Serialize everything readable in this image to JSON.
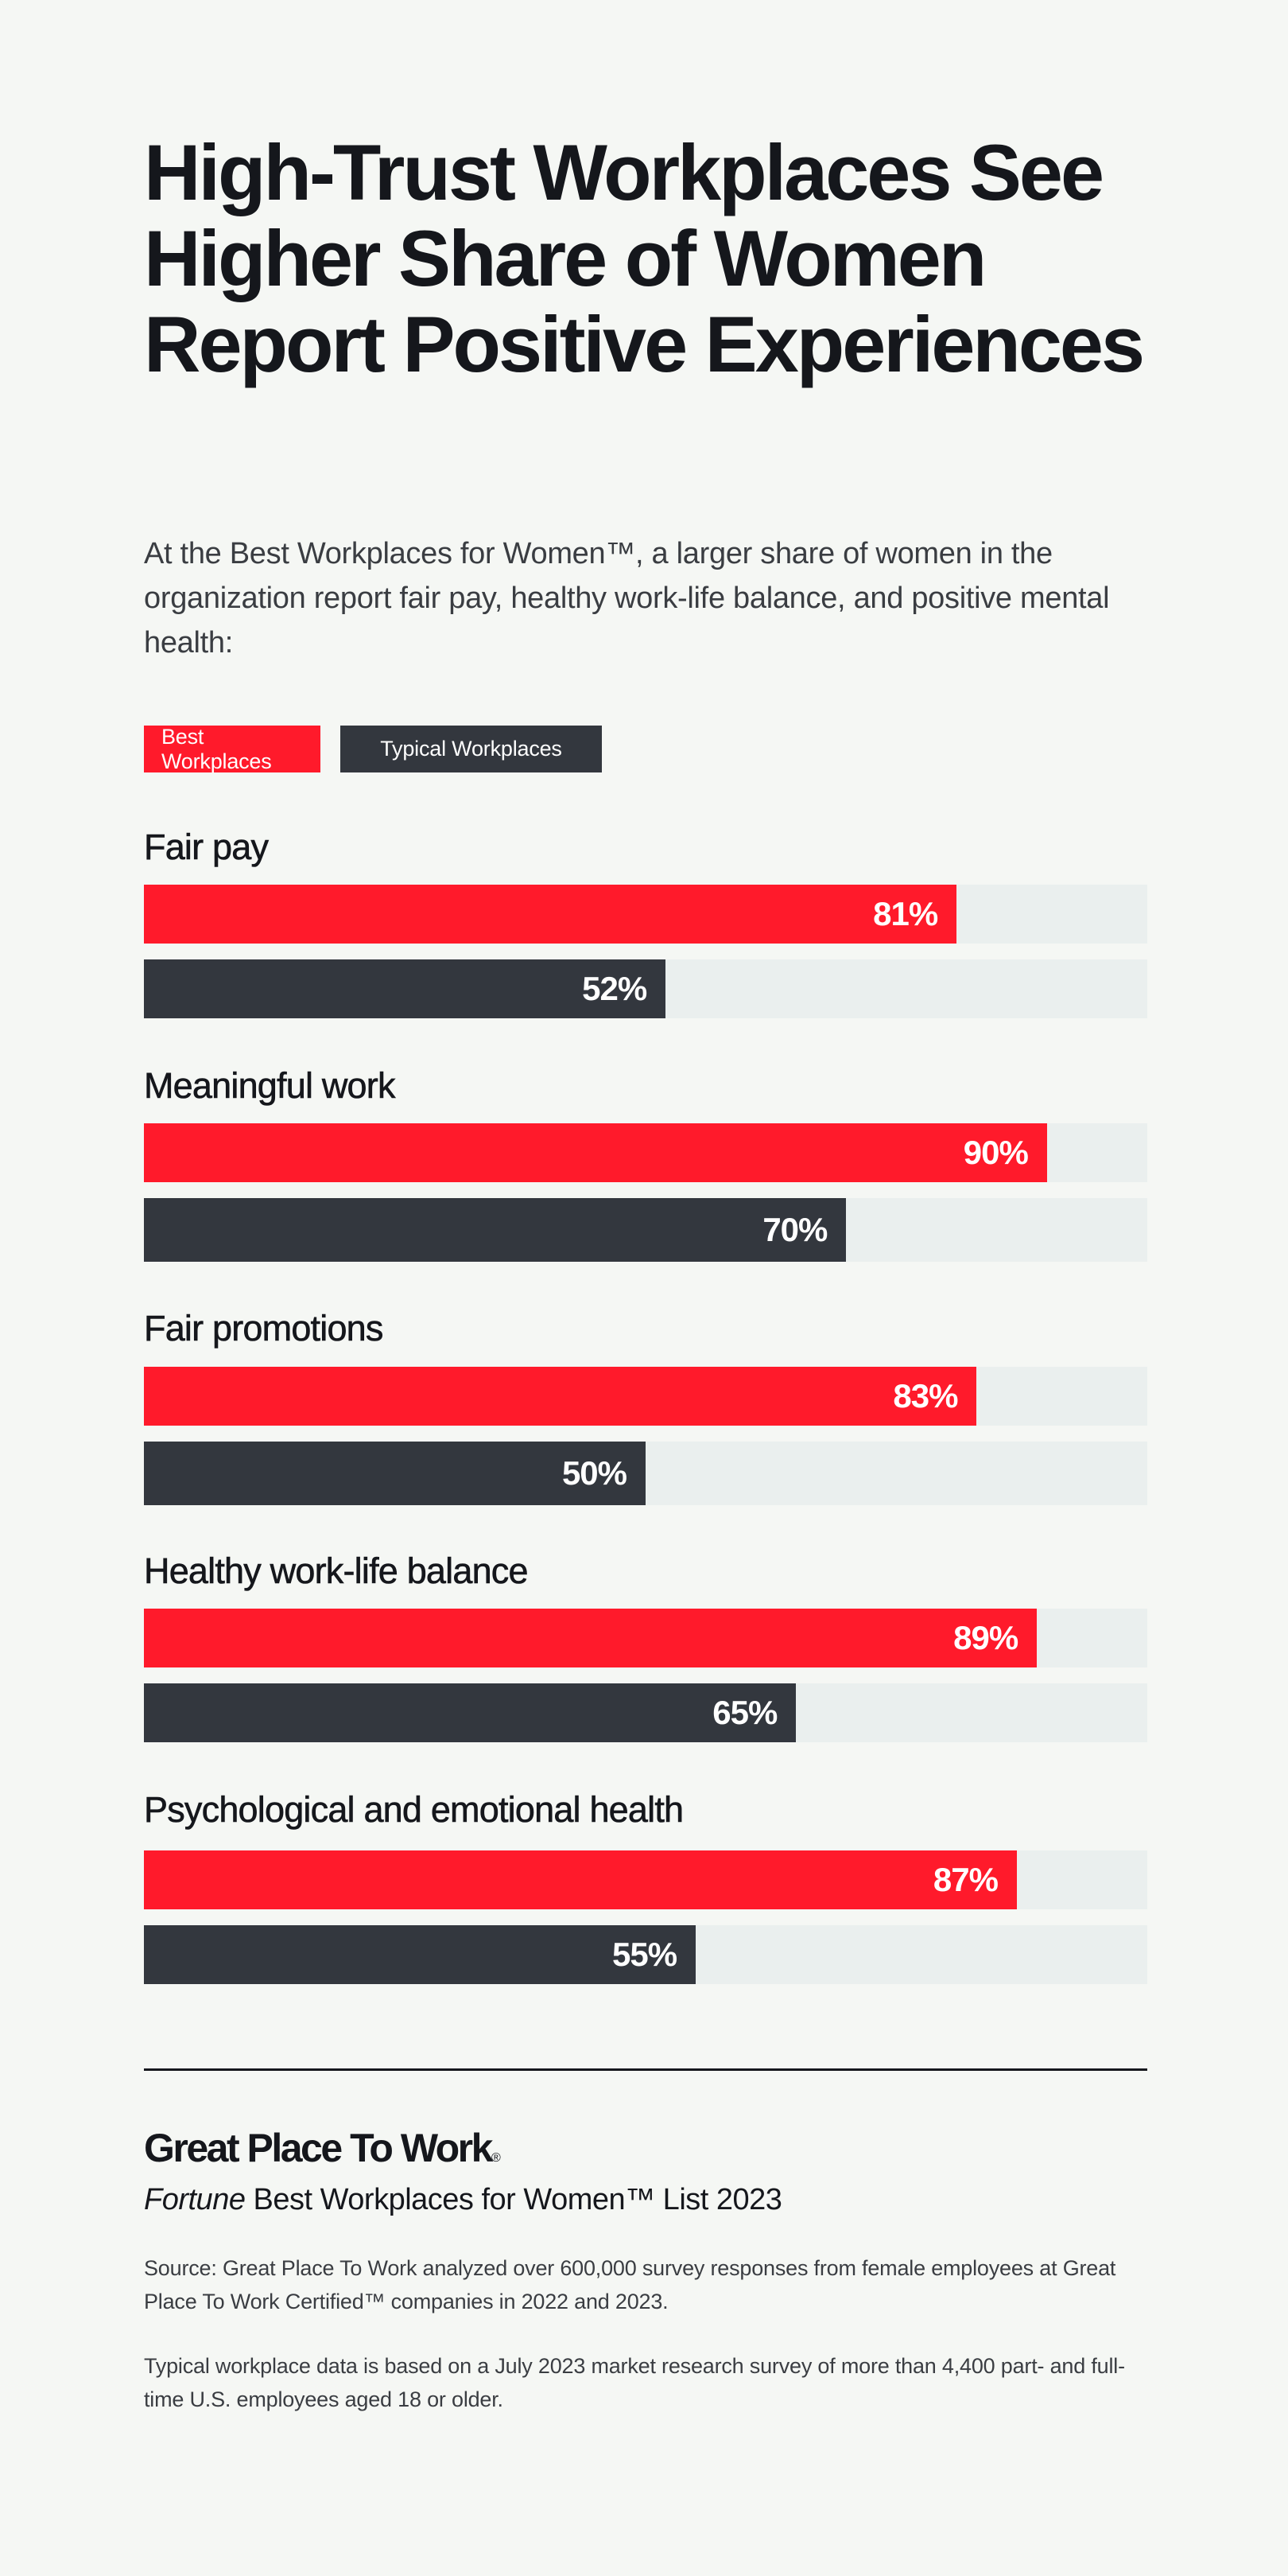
{
  "header": {
    "title": "High-Trust Workplaces See Higher Share of Women Report Positive Experiences",
    "subtitle": "At the Best Workplaces for Women™, a larger share of women in the organization report fair pay, healthy work-life balance, and positive mental health:"
  },
  "legend": {
    "best": {
      "label": "Best Workplaces",
      "color": "#ff1a2b"
    },
    "typical": {
      "label": "Typical Workplaces",
      "color": "#33373e"
    }
  },
  "groups": [
    {
      "label": "Fair pay",
      "best": {
        "value": 81,
        "text": "81%"
      },
      "typical": {
        "value": 52,
        "text": "52%"
      }
    },
    {
      "label": "Meaningful work",
      "best": {
        "value": 90,
        "text": "90%"
      },
      "typical": {
        "value": 70,
        "text": "70%"
      }
    },
    {
      "label": "Fair promotions",
      "best": {
        "value": 83,
        "text": "83%"
      },
      "typical": {
        "value": 50,
        "text": "50%"
      }
    },
    {
      "label": "Healthy work-life balance",
      "best": {
        "value": 89,
        "text": "89%"
      },
      "typical": {
        "value": 65,
        "text": "65%"
      }
    },
    {
      "label": "Psychological and emotional health",
      "best": {
        "value": 87,
        "text": "87%"
      },
      "typical": {
        "value": 55,
        "text": "55%"
      }
    }
  ],
  "footer": {
    "logo_text": "Great Place To Work",
    "logo_mark": "®",
    "list_title_italic": "Fortune",
    "list_title_rest": " Best Workplaces for Women™ List 2023",
    "source_note": "Source: Great Place To Work analyzed over 600,000 survey responses from female employees at Great Place To Work Certified™ companies in 2022 and 2023.",
    "typical_note": "Typical workplace data is based on a July 2023 market research survey of more than 4,400 part- and full-time U.S. employees aged 18 or older."
  },
  "chart_data": {
    "type": "bar",
    "orientation": "horizontal",
    "title": "High-Trust Workplaces See Higher Share of Women Report Positive Experiences",
    "subtitle": "At the Best Workplaces for Women™, a larger share of women in the organization report fair pay, healthy work-life balance, and positive mental health:",
    "categories": [
      "Fair pay",
      "Meaningful work",
      "Fair promotions",
      "Healthy work-life balance",
      "Psychological and emotional health"
    ],
    "series": [
      {
        "name": "Best Workplaces",
        "color": "#ff1a2b",
        "values": [
          81,
          90,
          83,
          89,
          87
        ]
      },
      {
        "name": "Typical Workplaces",
        "color": "#33373e",
        "values": [
          52,
          70,
          50,
          65,
          55
        ]
      }
    ],
    "value_format": "percent",
    "xlim": [
      0,
      100
    ],
    "grid": false,
    "legend_position": "top-left",
    "xlabel": "",
    "ylabel": ""
  }
}
